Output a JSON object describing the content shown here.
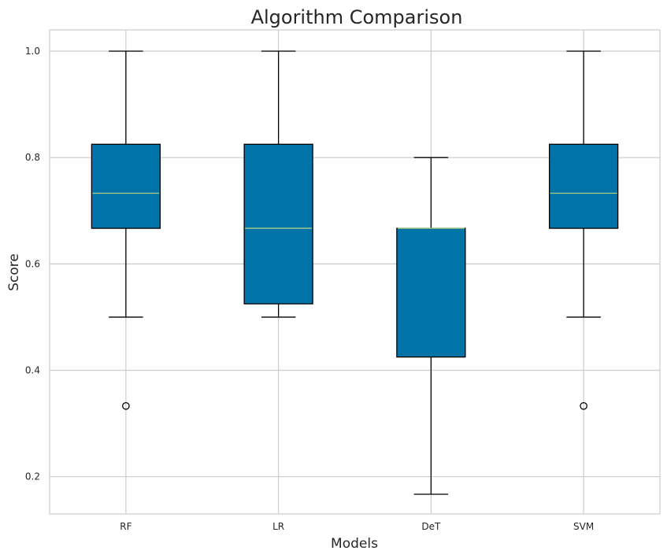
{
  "chart_data": {
    "type": "boxplot",
    "title": "Algorithm Comparison",
    "xlabel": "Models",
    "ylabel": "Score",
    "ylim": [
      0.13,
      1.04
    ],
    "yticks": [
      0.2,
      0.4,
      0.6,
      0.8,
      1.0
    ],
    "ytick_labels": [
      "0.2",
      "0.4",
      "0.6",
      "0.8",
      "1.0"
    ],
    "grid": true,
    "categories": [
      "RF",
      "LR",
      "DeT",
      "SVM"
    ],
    "boxes": [
      {
        "name": "RF",
        "whisker_low": 0.5,
        "q1": 0.667,
        "median": 0.733,
        "q3": 0.825,
        "whisker_high": 1.0,
        "outliers": [
          0.333
        ]
      },
      {
        "name": "LR",
        "whisker_low": 0.5,
        "q1": 0.525,
        "median": 0.667,
        "q3": 0.825,
        "whisker_high": 1.0,
        "outliers": []
      },
      {
        "name": "DeT",
        "whisker_low": 0.167,
        "q1": 0.425,
        "median": 0.667,
        "q3": 0.667,
        "whisker_high": 0.8,
        "outliers": []
      },
      {
        "name": "SVM",
        "whisker_low": 0.5,
        "q1": 0.667,
        "median": 0.733,
        "q3": 0.825,
        "whisker_high": 1.0,
        "outliers": [
          0.333
        ]
      }
    ],
    "colors": {
      "box_fill": "#0173a6",
      "median": "#a8d08d",
      "grid": "#cccccc",
      "spine": "#cccccc",
      "line": "#000000"
    }
  }
}
